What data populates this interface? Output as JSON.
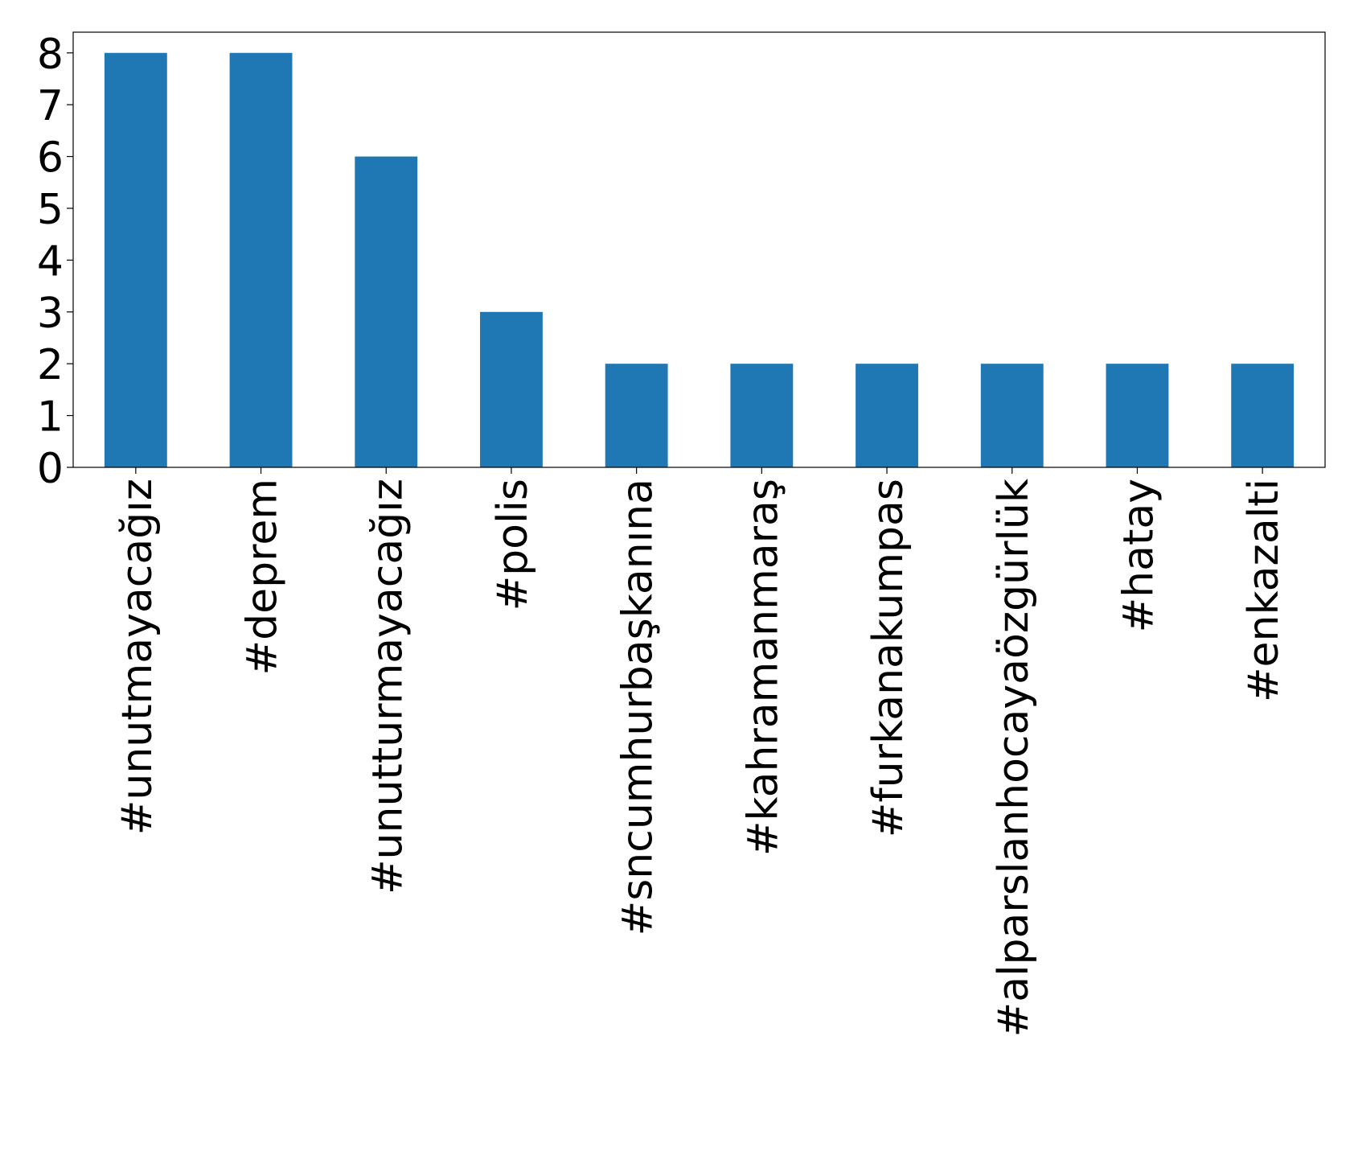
{
  "chart_data": {
    "type": "bar",
    "categories": [
      "#unutmayacağız",
      "#deprem",
      "#unutturmayacağız",
      "#polis",
      "#sncumhurbaşkanına",
      "#kahramanmaraş",
      "#furkanakumpas",
      "#alparslanhocayaözgürlük",
      "#hatay",
      "#enkazalti"
    ],
    "values": [
      8,
      8,
      6,
      3,
      2,
      2,
      2,
      2,
      2,
      2
    ],
    "color": "#1f77b4",
    "ylim": [
      0,
      8.4
    ],
    "yticks": [
      0,
      1,
      2,
      3,
      4,
      5,
      6,
      7,
      8
    ],
    "grid": false
  }
}
